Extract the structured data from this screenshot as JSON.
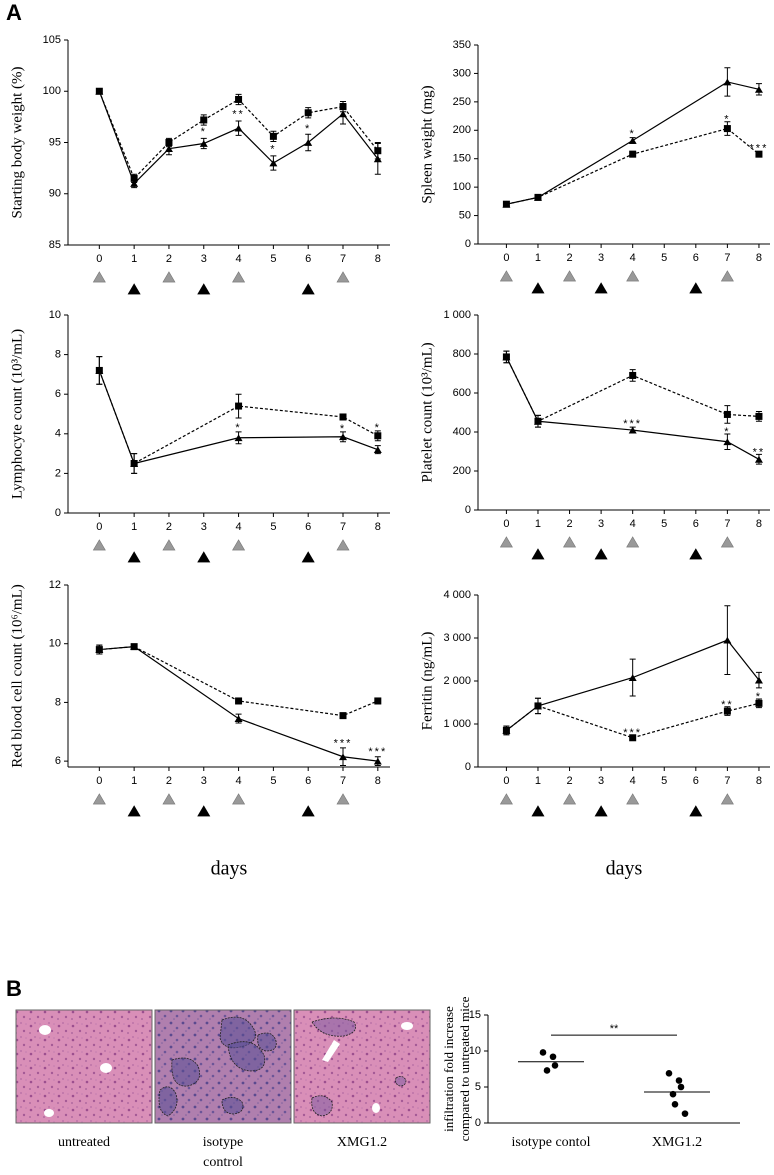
{
  "panel_labels": [
    "A",
    "B"
  ],
  "histology": {
    "captions": [
      [
        "untreated"
      ],
      [
        "isotype",
        "control"
      ],
      [
        "XMG1.2"
      ]
    ]
  },
  "chart_data": [
    {
      "type": "line",
      "ylabel": "Starting body weight (%)",
      "x": [
        0,
        1,
        2,
        3,
        4,
        5,
        6,
        7,
        8
      ],
      "xlim": [
        -0.9,
        8.35
      ],
      "xticks": [
        0,
        1,
        2,
        3,
        4,
        5,
        6,
        7,
        8
      ],
      "ylim": [
        85,
        105
      ],
      "yticks": [
        85,
        90,
        95,
        100,
        105
      ],
      "series": [
        {
          "color": "#000000",
          "marker": "square",
          "dashed": true,
          "values": [
            100,
            91.5,
            95,
            97.2,
            99.2,
            95.6,
            97.9,
            98.5,
            94.2
          ],
          "errors": [
            0.2,
            0.4,
            0.4,
            0.5,
            0.5,
            0.5,
            0.5,
            0.5,
            0.8
          ]
        },
        {
          "color": "#000000",
          "marker": "triangle",
          "dashed": false,
          "values": [
            100,
            91,
            94.4,
            94.9,
            96.4,
            93,
            95,
            97.8,
            93.4
          ],
          "errors": [
            0.2,
            0.4,
            0.6,
            0.5,
            0.7,
            0.7,
            0.8,
            1.0,
            1.5
          ]
        }
      ],
      "annotations": [
        {
          "text": "*",
          "x": 3,
          "y": 96
        },
        {
          "text": "**",
          "x": 4,
          "y": 97.7
        },
        {
          "text": "*",
          "x": 5,
          "y": 94.3
        },
        {
          "text": "*",
          "x": 6,
          "y": 96.3
        }
      ],
      "treatment_days": {
        "gray": [
          0,
          2,
          4,
          7
        ],
        "black": [
          1,
          3,
          6
        ]
      }
    },
    {
      "type": "line",
      "ylabel": "Spleen weight (mg)",
      "x": [
        0,
        1,
        4,
        7,
        8
      ],
      "xlim": [
        -0.9,
        8.35
      ],
      "xticks": [
        0,
        1,
        2,
        3,
        4,
        5,
        6,
        7,
        8
      ],
      "ylim": [
        0,
        350
      ],
      "yticks": [
        0,
        50,
        100,
        150,
        200,
        250,
        300,
        350
      ],
      "series": [
        {
          "color": "#000000",
          "marker": "square",
          "dashed": true,
          "values": [
            70,
            82,
            158,
            203,
            158
          ],
          "errors": [
            2,
            3,
            5,
            12,
            4
          ]
        },
        {
          "color": "#000000",
          "marker": "triangle",
          "dashed": false,
          "values": [
            70,
            82,
            182,
            285,
            272
          ],
          "errors": [
            2,
            3,
            5,
            25,
            10
          ]
        }
      ],
      "annotations": [
        {
          "text": "*",
          "x": 4,
          "y": 193
        },
        {
          "text": "*",
          "x": 7,
          "y": 219
        },
        {
          "text": "***",
          "x": 8,
          "y": 168
        }
      ],
      "treatment_days": {
        "gray": [
          0,
          2,
          4,
          7
        ],
        "black": [
          1,
          3,
          6
        ]
      }
    },
    {
      "type": "line",
      "ylabel": "Lymphocyte count (10³/mL)",
      "x": [
        0,
        1,
        4,
        7,
        8
      ],
      "xlim": [
        -0.9,
        8.35
      ],
      "xticks": [
        0,
        1,
        2,
        3,
        4,
        5,
        6,
        7,
        8
      ],
      "ylim": [
        0,
        10
      ],
      "yticks": [
        0,
        2,
        4,
        6,
        8,
        10
      ],
      "series": [
        {
          "color": "#000000",
          "marker": "square",
          "dashed": true,
          "values": [
            7.2,
            2.5,
            5.4,
            4.85,
            3.9
          ],
          "errors": [
            0.7,
            0.5,
            0.6,
            0.15,
            0.25
          ]
        },
        {
          "color": "#000000",
          "marker": "triangle",
          "dashed": false,
          "values": [
            7.2,
            2.5,
            3.8,
            3.85,
            3.2
          ],
          "errors": [
            0.7,
            0.5,
            0.3,
            0.25,
            0.2
          ]
        }
      ],
      "annotations": [
        {
          "text": "*",
          "x": 4,
          "y": 4.3
        },
        {
          "text": "*",
          "x": 7,
          "y": 4.25
        },
        {
          "text": "*",
          "x": 8,
          "y": 4.3
        }
      ],
      "treatment_days": {
        "gray": [
          0,
          2,
          4,
          7
        ],
        "black": [
          1,
          3,
          6
        ]
      }
    },
    {
      "type": "line",
      "ylabel": "Platelet count (10³/mL)",
      "x": [
        0,
        1,
        4,
        7,
        8
      ],
      "xlim": [
        -0.9,
        8.35
      ],
      "xticks": [
        0,
        1,
        2,
        3,
        4,
        5,
        6,
        7,
        8
      ],
      "ylim": [
        0,
        1000
      ],
      "yticks": [
        0,
        200,
        400,
        600,
        800,
        {
          "value": 1000,
          "label": "1 000"
        }
      ],
      "series": [
        {
          "color": "#000000",
          "marker": "square",
          "dashed": true,
          "values": [
            785,
            455,
            690,
            490,
            480
          ],
          "errors": [
            30,
            30,
            30,
            45,
            25
          ]
        },
        {
          "color": "#000000",
          "marker": "triangle",
          "dashed": false,
          "values": [
            785,
            455,
            410,
            350,
            260
          ],
          "errors": [
            30,
            30,
            15,
            40,
            25
          ]
        }
      ],
      "annotations": [
        {
          "text": "***",
          "x": 4,
          "y": 440
        },
        {
          "text": "*",
          "x": 7,
          "y": 400
        },
        {
          "text": "**",
          "x": 8,
          "y": 295
        }
      ],
      "treatment_days": {
        "gray": [
          0,
          2,
          4,
          7
        ],
        "black": [
          1,
          3,
          6
        ]
      }
    },
    {
      "type": "line",
      "ylabel": "Red blood cell count (10⁶/mL)",
      "xlabel": "days",
      "x": [
        0,
        1,
        4,
        7,
        8
      ],
      "xlim": [
        -0.9,
        8.35
      ],
      "xticks": [
        0,
        1,
        2,
        3,
        4,
        5,
        6,
        7,
        8
      ],
      "ylim": [
        5.8,
        12
      ],
      "yticks": [
        6,
        8,
        10,
        12
      ],
      "series": [
        {
          "color": "#000000",
          "marker": "square",
          "dashed": true,
          "values": [
            9.8,
            9.9,
            8.05,
            7.55,
            8.05
          ],
          "errors": [
            0.15,
            0.05,
            0.1,
            0.05,
            0.1
          ]
        },
        {
          "color": "#000000",
          "marker": "triangle",
          "dashed": false,
          "values": [
            9.8,
            9.9,
            7.45,
            6.15,
            6.0
          ],
          "errors": [
            0.15,
            0.05,
            0.15,
            0.3,
            0.15
          ]
        }
      ],
      "annotations": [
        {
          "text": "***",
          "x": 7,
          "y": 6.6
        },
        {
          "text": "***",
          "x": 8,
          "y": 6.3
        }
      ],
      "treatment_days": {
        "gray": [
          0,
          2,
          4,
          7
        ],
        "black": [
          1,
          3,
          6
        ]
      }
    },
    {
      "type": "line",
      "ylabel": "Ferritin (ng/mL)",
      "xlabel": "days",
      "x": [
        0,
        1,
        4,
        7,
        8
      ],
      "xlim": [
        -0.9,
        8.35
      ],
      "xticks": [
        0,
        1,
        2,
        3,
        4,
        5,
        6,
        7,
        8
      ],
      "ylim": [
        0,
        4000
      ],
      "yticks": [
        0,
        {
          "value": 1000,
          "label": "1 000"
        },
        {
          "value": 2000,
          "label": "2 000"
        },
        {
          "value": 3000,
          "label": "3 000"
        },
        {
          "value": 4000,
          "label": "4 000"
        }
      ],
      "series": [
        {
          "color": "#000000",
          "marker": "square",
          "dashed": true,
          "values": [
            850,
            1420,
            680,
            1300,
            1480
          ],
          "errors": [
            100,
            180,
            50,
            100,
            100
          ]
        },
        {
          "color": "#000000",
          "marker": "triangle",
          "dashed": false,
          "values": [
            850,
            1420,
            2080,
            2950,
            2020
          ],
          "errors": [
            100,
            180,
            430,
            800,
            180
          ]
        }
      ],
      "annotations": [
        {
          "text": "***",
          "x": 4,
          "y": 790
        },
        {
          "text": "**",
          "x": 7,
          "y": 1440
        },
        {
          "text": "*",
          "x": 8,
          "y": 1630
        }
      ],
      "treatment_days": {
        "gray": [
          0,
          2,
          4,
          7
        ],
        "black": [
          1,
          3,
          6
        ]
      }
    },
    {
      "type": "dot",
      "ylabel": [
        "infiltration fold increase",
        "compared to untreated mice"
      ],
      "categories": [
        "isotype contol",
        "XMG1.2"
      ],
      "ylim": [
        0,
        15
      ],
      "yticks": [
        0,
        5,
        10,
        15
      ],
      "color": "#000000",
      "groups": [
        [
          9.8,
          9.2,
          8.0,
          7.3
        ],
        [
          6.9,
          5.9,
          5.0,
          4.0,
          2.6,
          1.3
        ]
      ],
      "means": [
        8.5,
        4.3
      ],
      "significance": {
        "text": "**",
        "y": 12.2
      }
    }
  ]
}
